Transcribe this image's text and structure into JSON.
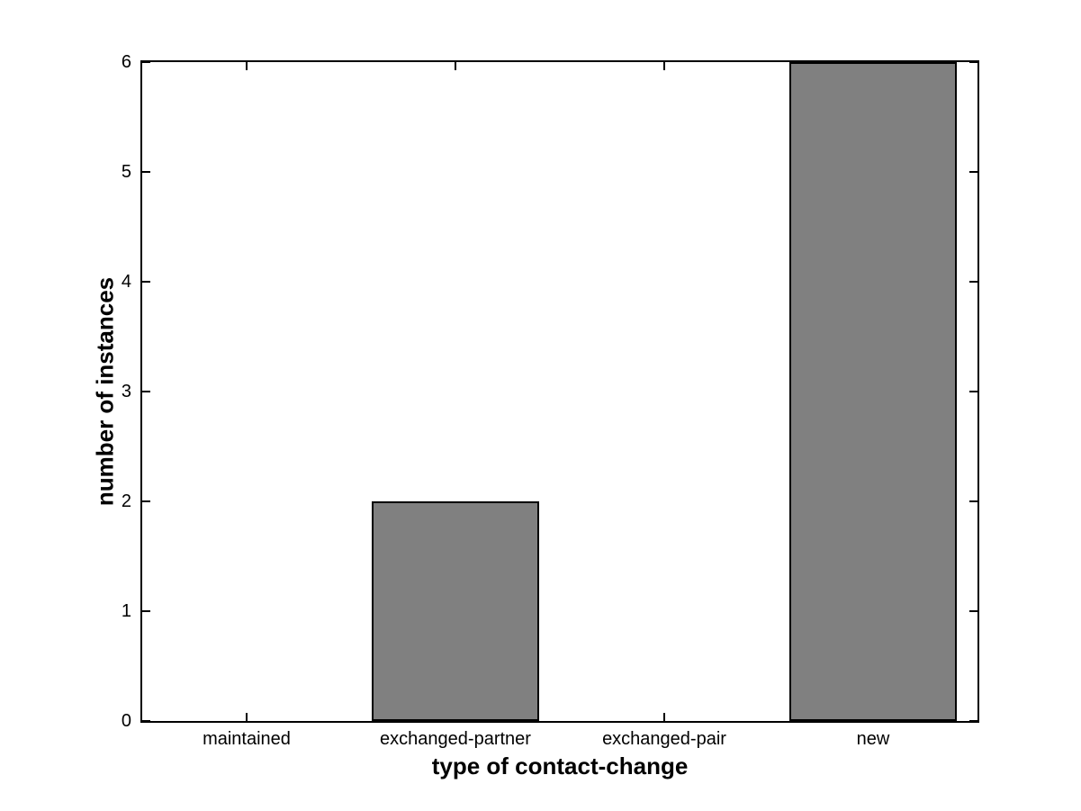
{
  "chart_data": {
    "type": "bar",
    "categories": [
      "maintained",
      "exchanged-partner",
      "exchanged-pair",
      "new"
    ],
    "values": [
      0,
      2,
      0,
      6
    ],
    "title": "",
    "xlabel": "type of contact-change",
    "ylabel": "number of instances",
    "ylim": [
      0,
      6
    ],
    "yticks": [
      0,
      1,
      2,
      3,
      4,
      5,
      6
    ],
    "bar_width_fraction": 0.8,
    "grid": false,
    "legend_position": "none",
    "colors": {
      "bar_fill": "#808080",
      "bar_edge": "#000000",
      "axis": "#000000",
      "background": "#ffffff",
      "text": "#000000"
    }
  }
}
